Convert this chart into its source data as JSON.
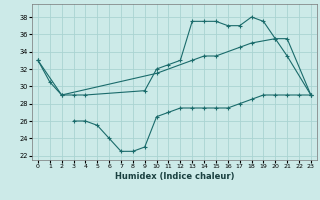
{
  "xlabel": "Humidex (Indice chaleur)",
  "bg_color": "#cceae8",
  "grid_color": "#aad4d2",
  "line_color": "#1a6b6b",
  "xlim": [
    -0.5,
    23.5
  ],
  "ylim": [
    21.5,
    39.5
  ],
  "xticks": [
    0,
    1,
    2,
    3,
    4,
    5,
    6,
    7,
    8,
    9,
    10,
    11,
    12,
    13,
    14,
    15,
    16,
    17,
    18,
    19,
    20,
    21,
    22,
    23
  ],
  "yticks": [
    22,
    24,
    26,
    28,
    30,
    32,
    34,
    36,
    38
  ],
  "s0_x": [
    0,
    1,
    2,
    3,
    4,
    9,
    10,
    11,
    12,
    13,
    14,
    15,
    16,
    17,
    18,
    19,
    20,
    21,
    23
  ],
  "s0_y": [
    33,
    30.5,
    29,
    29,
    29,
    29.5,
    32,
    32.5,
    33,
    37.5,
    37.5,
    37.5,
    37,
    37,
    38,
    37.5,
    35.5,
    33.5,
    29
  ],
  "s1_x": [
    0,
    2,
    10,
    13,
    14,
    15,
    17,
    18,
    20,
    21,
    23
  ],
  "s1_y": [
    33,
    29,
    31.5,
    33,
    33.5,
    33.5,
    34.5,
    35,
    35.5,
    35.5,
    29
  ],
  "s2_x": [
    3,
    4,
    5,
    6,
    7,
    8,
    9,
    10,
    11,
    12,
    13,
    14,
    15,
    16,
    17,
    18,
    19,
    20,
    21,
    22,
    23
  ],
  "s2_y": [
    26,
    26,
    25.5,
    24,
    22.5,
    22.5,
    23,
    26.5,
    27,
    27.5,
    27.5,
    27.5,
    27.5,
    27.5,
    28,
    28.5,
    29,
    29,
    29,
    29,
    29
  ]
}
